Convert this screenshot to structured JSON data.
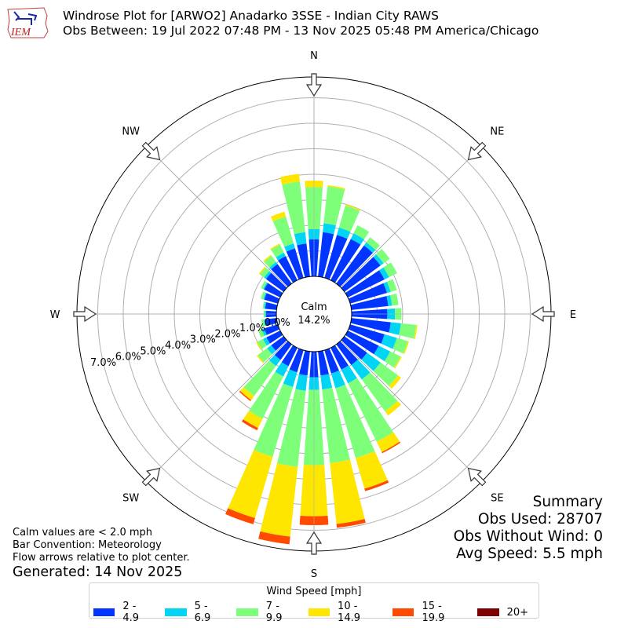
{
  "header": {
    "logo_text": "IEM",
    "title_line1": "Windrose Plot for [ARWO2] Anadarko 3SSE - Indian City RAWS",
    "title_line2": "Obs Between: 19 Jul 2022 07:48 PM - 13 Nov 2025 05:48 PM America/Chicago"
  },
  "notes": {
    "calm_note": "Calm values are < 2.0 mph",
    "bar_convention": "Bar Convention: Meteorology",
    "flow_arrows": "Flow arrows relative to plot center.",
    "generated": "Generated: 14 Nov 2025"
  },
  "summary": {
    "title": "Summary",
    "obs_used": "Obs Used: 28707",
    "obs_without_wind": "Obs Without Wind: 0",
    "avg_speed": "Avg Speed: 5.5 mph"
  },
  "legend": {
    "title": "Wind Speed [mph]",
    "items": [
      {
        "label": "2 - 4.9",
        "color": "#0034ff"
      },
      {
        "label": "5 - 6.9",
        "color": "#00d5f5"
      },
      {
        "label": "7 - 9.9",
        "color": "#7dff7a"
      },
      {
        "label": "10 - 14.9",
        "color": "#ffe600"
      },
      {
        "label": "15 - 19.9",
        "color": "#ff4a00"
      },
      {
        "label": "20+",
        "color": "#7f0000"
      }
    ]
  },
  "chart_data": {
    "type": "windrose",
    "title": "Windrose Plot for [ARWO2] Anadarko 3SSE - Indian City RAWS",
    "subtitle": "Obs Between: 19 Jul 2022 07:48 PM - 13 Nov 2025 05:48 PM America/Chicago",
    "calm_label": "Calm",
    "calm_value": "14.2%",
    "radial_ticks": [
      "0.0%",
      "1.0%",
      "2.0%",
      "3.0%",
      "4.0%",
      "5.0%",
      "6.0%",
      "7.0%"
    ],
    "radial_max": 7.8,
    "direction_labels": [
      "N",
      "NE",
      "E",
      "SE",
      "S",
      "SW",
      "W",
      "NW"
    ],
    "bin_width_deg": 10,
    "series_names": [
      "2 - 4.9",
      "5 - 6.9",
      "7 - 9.9",
      "10 - 14.9",
      "15 - 19.9",
      "20+"
    ],
    "series_colors": [
      "#0034ff",
      "#00d5f5",
      "#7dff7a",
      "#ffe600",
      "#ff4a00",
      "#7f0000"
    ],
    "directions_deg": [
      0,
      10,
      20,
      30,
      40,
      50,
      60,
      70,
      80,
      90,
      100,
      110,
      120,
      130,
      140,
      150,
      160,
      170,
      180,
      190,
      200,
      210,
      220,
      230,
      240,
      250,
      260,
      270,
      280,
      290,
      300,
      310,
      320,
      330,
      340,
      350
    ],
    "cumulative_pct": [
      [
        1.45,
        1.85,
        3.5,
        3.75,
        3.75,
        3.75
      ],
      [
        1.75,
        2.1,
        3.55,
        3.6,
        3.6,
        3.6
      ],
      [
        1.75,
        2.05,
        2.95,
        3.0,
        3.0,
        3.0
      ],
      [
        1.8,
        2.05,
        2.4,
        2.4,
        2.4,
        2.4
      ],
      [
        1.85,
        2.0,
        2.25,
        2.25,
        2.25,
        2.25
      ],
      [
        1.75,
        1.9,
        2.2,
        2.2,
        2.2,
        2.2
      ],
      [
        1.6,
        1.8,
        2.15,
        2.15,
        2.15,
        2.15
      ],
      [
        1.5,
        1.65,
        1.9,
        1.9,
        1.9,
        1.9
      ],
      [
        1.45,
        1.6,
        1.85,
        1.85,
        1.85,
        1.85
      ],
      [
        1.4,
        1.7,
        1.95,
        1.95,
        1.95,
        1.95
      ],
      [
        1.55,
        1.95,
        2.55,
        2.6,
        2.6,
        2.6
      ],
      [
        1.4,
        1.9,
        2.35,
        2.4,
        2.4,
        2.4
      ],
      [
        1.35,
        1.85,
        2.3,
        2.35,
        2.35,
        2.35
      ],
      [
        1.1,
        1.75,
        2.6,
        2.75,
        2.75,
        2.75
      ],
      [
        1.0,
        1.7,
        3.25,
        3.45,
        3.45,
        3.45
      ],
      [
        0.95,
        1.55,
        4.1,
        4.55,
        4.6,
        4.6
      ],
      [
        0.95,
        1.55,
        4.4,
        5.65,
        5.75,
        5.75
      ],
      [
        0.95,
        1.5,
        4.4,
        6.8,
        6.95,
        6.95
      ],
      [
        1.0,
        1.5,
        4.45,
        6.45,
        6.8,
        6.8
      ],
      [
        0.95,
        1.55,
        4.55,
        7.3,
        7.6,
        7.6
      ],
      [
        0.9,
        1.5,
        4.35,
        6.85,
        7.1,
        7.1
      ],
      [
        0.8,
        1.25,
        3.1,
        3.5,
        3.6,
        3.6
      ],
      [
        0.75,
        1.05,
        2.5,
        2.7,
        2.75,
        2.75
      ],
      [
        0.6,
        0.8,
        1.25,
        1.3,
        1.3,
        1.3
      ],
      [
        0.6,
        0.75,
        1.0,
        1.05,
        1.05,
        1.05
      ],
      [
        0.55,
        0.65,
        0.8,
        0.8,
        0.8,
        0.8
      ],
      [
        0.45,
        0.5,
        0.6,
        0.6,
        0.6,
        0.6
      ],
      [
        0.4,
        0.45,
        0.5,
        0.5,
        0.5,
        0.5
      ],
      [
        0.45,
        0.5,
        0.55,
        0.55,
        0.55,
        0.55
      ],
      [
        0.55,
        0.6,
        0.7,
        0.7,
        0.7,
        0.7
      ],
      [
        0.7,
        0.75,
        0.85,
        0.85,
        0.85,
        0.85
      ],
      [
        0.85,
        0.95,
        1.15,
        1.2,
        1.2,
        1.2
      ],
      [
        0.95,
        1.05,
        1.35,
        1.4,
        1.4,
        1.4
      ],
      [
        1.05,
        1.2,
        1.55,
        1.6,
        1.6,
        1.6
      ],
      [
        1.2,
        1.4,
        2.5,
        2.7,
        2.7,
        2.7
      ],
      [
        1.3,
        1.75,
        3.75,
        4.05,
        4.05,
        4.05
      ]
    ]
  }
}
